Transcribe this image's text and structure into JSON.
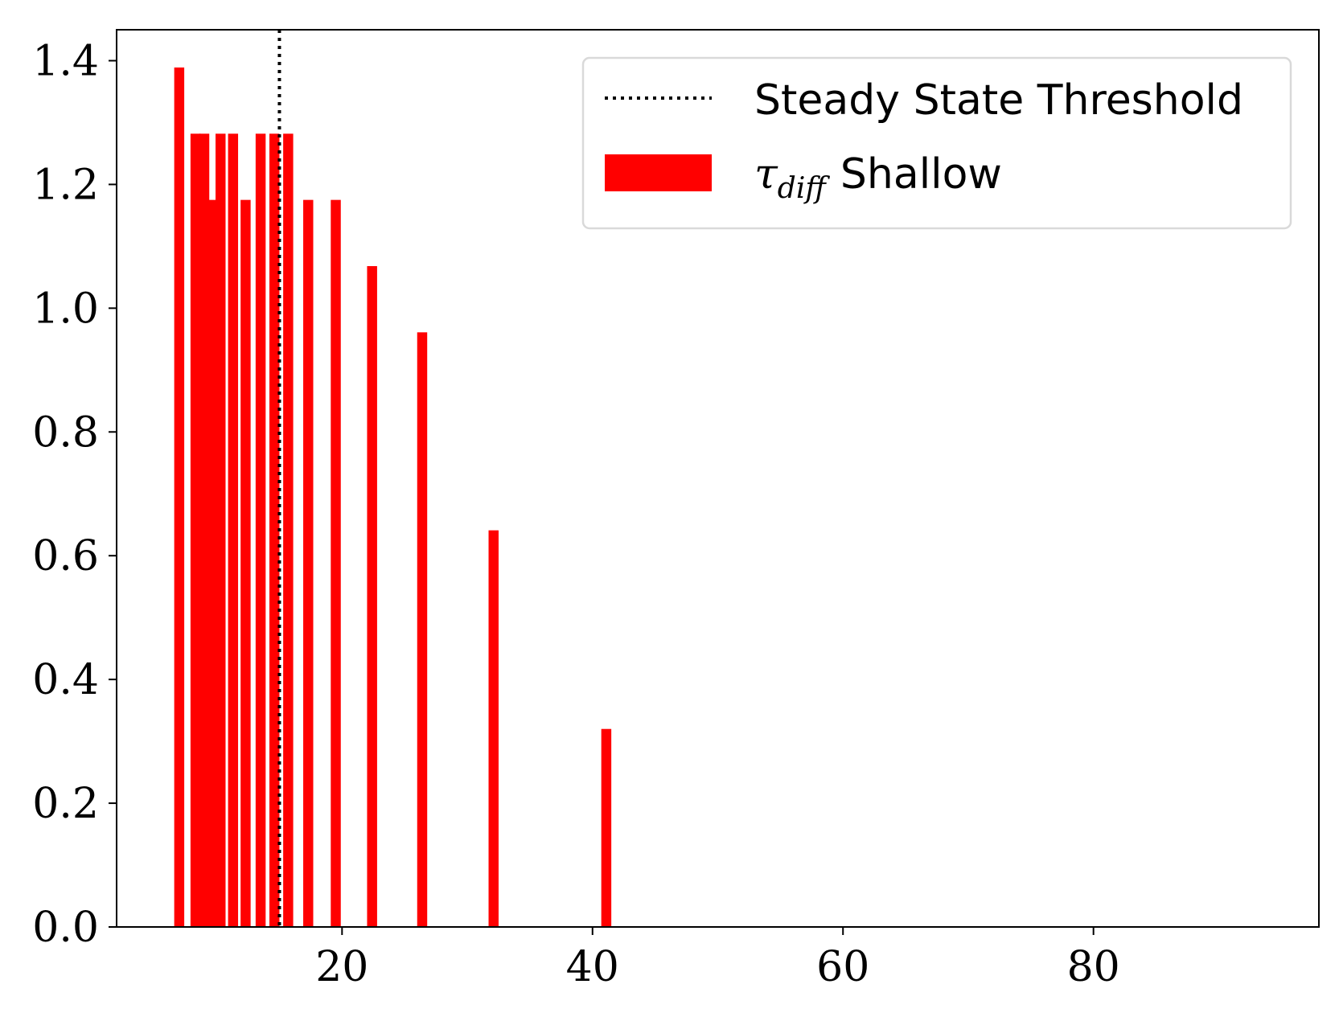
{
  "chart_data": {
    "type": "bar",
    "title": "",
    "xlabel": "",
    "ylabel": "",
    "xlim": [
      2,
      98
    ],
    "ylim": [
      0,
      1.45
    ],
    "x_ticks": [
      20,
      40,
      60,
      80
    ],
    "y_ticks": [
      0.0,
      0.2,
      0.4,
      0.6,
      0.8,
      1.0,
      1.2,
      1.4
    ],
    "x_tick_labels": [
      "20",
      "40",
      "60",
      "80"
    ],
    "y_tick_labels": [
      "0.0",
      "0.2",
      "0.4",
      "0.6",
      "0.8",
      "1.0",
      "1.2",
      "1.4"
    ],
    "grid": false,
    "legend_position": "top-right",
    "bar_width": 0.8,
    "series": [
      {
        "name_base": "Shallow",
        "name_symbol": "τ",
        "name_subscript": "diff",
        "color": "#ff0000",
        "points": [
          {
            "x": 7.0,
            "y": 1.389
          },
          {
            "x": 8.3,
            "y": 1.282
          },
          {
            "x": 9.0,
            "y": 1.282
          },
          {
            "x": 9.6,
            "y": 1.175
          },
          {
            "x": 10.3,
            "y": 1.282
          },
          {
            "x": 11.3,
            "y": 1.282
          },
          {
            "x": 12.3,
            "y": 1.175
          },
          {
            "x": 13.5,
            "y": 1.282
          },
          {
            "x": 14.6,
            "y": 1.282
          },
          {
            "x": 15.7,
            "y": 1.282
          },
          {
            "x": 17.3,
            "y": 1.175
          },
          {
            "x": 19.5,
            "y": 1.175
          },
          {
            "x": 22.4,
            "y": 1.068
          },
          {
            "x": 26.4,
            "y": 0.961
          },
          {
            "x": 32.1,
            "y": 0.641
          },
          {
            "x": 41.1,
            "y": 0.32
          }
        ]
      }
    ],
    "threshold": {
      "name": "Steady State Threshold",
      "x": 15.0,
      "style": "dotted",
      "color": "#000000"
    }
  }
}
